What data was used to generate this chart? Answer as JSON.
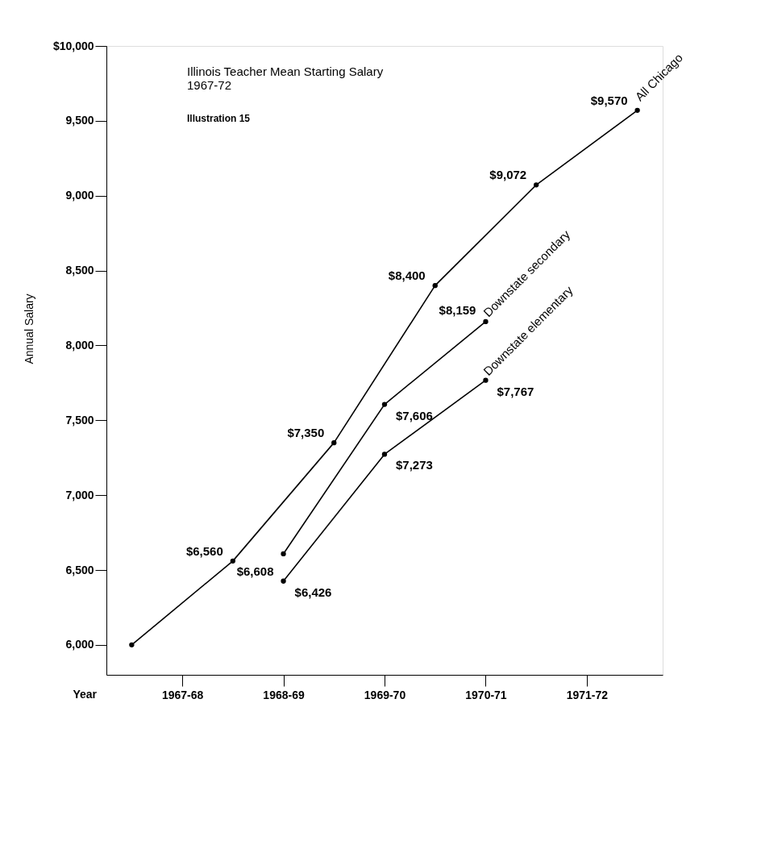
{
  "chart_data": {
    "type": "line",
    "title": "Illinois Teacher Mean Starting Salary\n1967-72",
    "annotations": [
      "Illustration 15"
    ],
    "xlabel": "Year",
    "ylabel": "Annual Salary",
    "categories": [
      null,
      "1967-68",
      null,
      "1968-69",
      null,
      "1969-70",
      null,
      "1970-71",
      null,
      "1971-72",
      null
    ],
    "series": [
      {
        "name": "All Chicago",
        "color": "#000000",
        "values": [
          6000,
          null,
          6560,
          null,
          7350,
          null,
          8400,
          null,
          9072,
          null,
          9570
        ],
        "value_labels": [
          null,
          null,
          "$6,560",
          null,
          "$7,350",
          null,
          "$8,400",
          null,
          "$9,072",
          null,
          "$9,570"
        ]
      },
      {
        "name": "Downstate secondary",
        "color": "#000000",
        "values": [
          null,
          null,
          null,
          6608,
          null,
          7606,
          null,
          8159,
          null,
          null,
          null
        ],
        "value_labels": [
          null,
          null,
          null,
          "$6,608",
          null,
          "$7,606",
          null,
          "$8,159",
          null,
          null,
          null
        ]
      },
      {
        "name": "Downstate elementary",
        "color": "#000000",
        "values": [
          null,
          null,
          null,
          6426,
          null,
          7273,
          null,
          7767,
          null,
          null,
          null
        ],
        "value_labels": [
          null,
          null,
          null,
          "$6,426",
          null,
          "$7,273",
          null,
          "$7,767",
          null,
          null,
          null
        ]
      }
    ],
    "ylim": [
      5800,
      10000
    ],
    "yticks": [
      {
        "value": 6000,
        "label": "6,000"
      },
      {
        "value": 6500,
        "label": "6,500"
      },
      {
        "value": 7000,
        "label": "7,000"
      },
      {
        "value": 7500,
        "label": "7,500"
      },
      {
        "value": 8000,
        "label": "8,000"
      },
      {
        "value": 8500,
        "label": "8,500"
      },
      {
        "value": 9000,
        "label": "9,000"
      },
      {
        "value": 9500,
        "label": "9,500"
      },
      {
        "value": 10000,
        "label": "$10,000"
      }
    ],
    "grid": false,
    "legend": false,
    "marker": "circle",
    "line_style": "solid"
  }
}
